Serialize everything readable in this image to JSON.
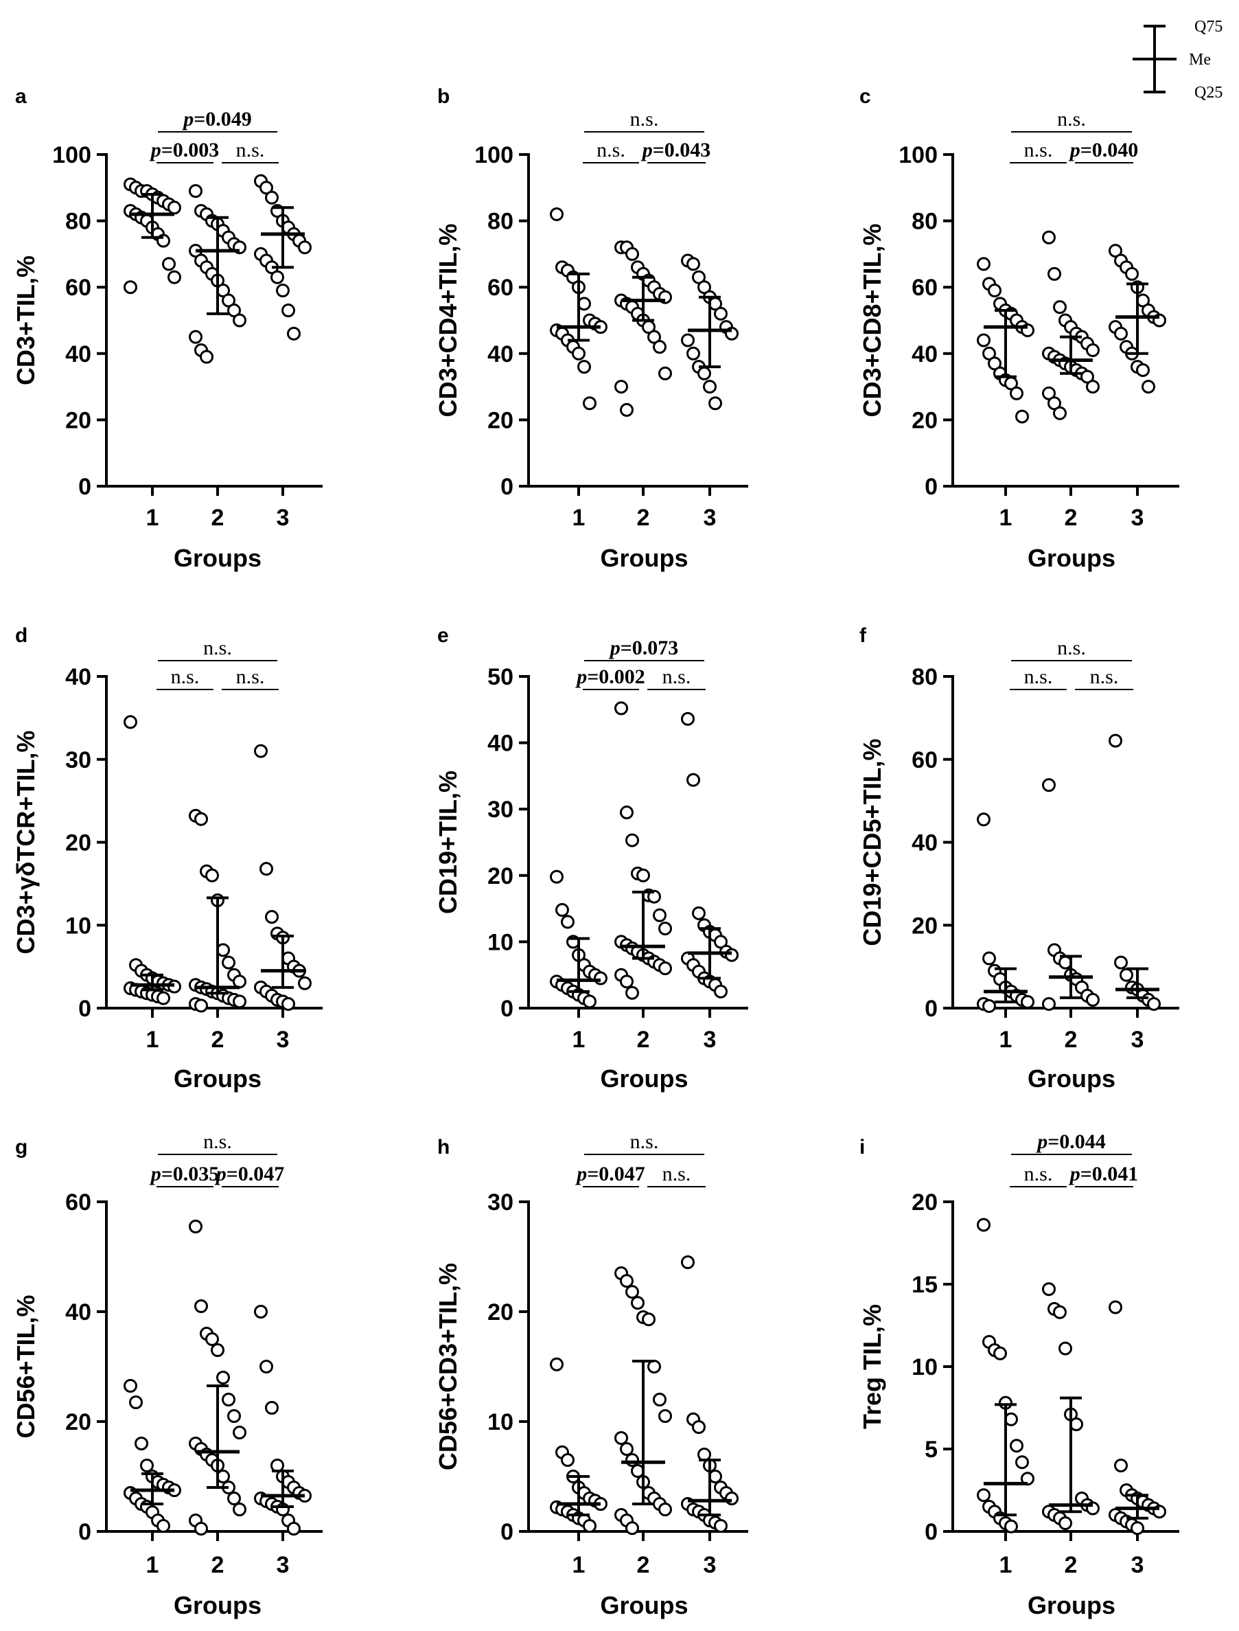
{
  "legend": {
    "q75": "Q75",
    "me": "Me",
    "q25": "Q25"
  },
  "chart_data": [
    {
      "panel": "a",
      "type": "scatter",
      "ylabel": "CD3+TIL,%",
      "xlabel": "Groups",
      "categories": [
        "1",
        "2",
        "3"
      ],
      "ylim": [
        0,
        100
      ],
      "yticks": [
        0,
        20,
        40,
        60,
        80,
        100
      ],
      "summary": [
        {
          "q25": 75,
          "median": 82,
          "q75": 88
        },
        {
          "q25": 52,
          "median": 71,
          "q75": 81
        },
        {
          "q25": 66,
          "median": 76,
          "q75": 84
        }
      ],
      "points": [
        [
          91,
          90,
          89,
          89,
          88,
          87,
          86,
          85,
          84,
          83,
          82,
          81,
          80,
          78,
          76,
          74,
          67,
          63,
          60
        ],
        [
          89,
          83,
          82,
          80,
          79,
          77,
          75,
          73,
          72,
          71,
          68,
          66,
          64,
          62,
          59,
          56,
          53,
          50,
          45,
          41,
          39
        ],
        [
          92,
          90,
          87,
          83,
          80,
          78,
          76,
          74,
          72,
          70,
          68,
          66,
          63,
          59,
          53,
          46
        ]
      ],
      "comparisons": [
        {
          "groups": [
            "1",
            "3"
          ],
          "label": "=0.049",
          "p_prefix": true,
          "level": 0
        },
        {
          "groups": [
            "1",
            "2"
          ],
          "label": "=0.003",
          "p_prefix": true,
          "level": 1
        },
        {
          "groups": [
            "2",
            "3"
          ],
          "label": "n.s.",
          "p_prefix": false,
          "level": 1
        }
      ]
    },
    {
      "panel": "b",
      "type": "scatter",
      "ylabel": "CD3+CD4+TIL,%",
      "xlabel": "Groups",
      "categories": [
        "1",
        "2",
        "3"
      ],
      "ylim": [
        0,
        100
      ],
      "yticks": [
        0,
        20,
        40,
        60,
        80,
        100
      ],
      "summary": [
        {
          "q25": 44,
          "median": 48,
          "q75": 64
        },
        {
          "q25": 50,
          "median": 56,
          "q75": 63
        },
        {
          "q25": 36,
          "median": 47,
          "q75": 57
        }
      ],
      "points": [
        [
          82,
          66,
          65,
          63,
          60,
          55,
          50,
          49,
          48,
          47,
          46,
          44,
          42,
          40,
          36,
          25
        ],
        [
          72,
          72,
          70,
          66,
          64,
          62,
          60,
          58,
          57,
          56,
          55,
          54,
          52,
          50,
          48,
          45,
          42,
          34,
          30,
          23
        ],
        [
          68,
          67,
          63,
          60,
          57,
          55,
          52,
          48,
          46,
          44,
          40,
          36,
          34,
          30,
          25
        ]
      ],
      "comparisons": [
        {
          "groups": [
            "1",
            "3"
          ],
          "label": "n.s.",
          "p_prefix": false,
          "level": 0
        },
        {
          "groups": [
            "1",
            "2"
          ],
          "label": "n.s.",
          "p_prefix": false,
          "level": 1
        },
        {
          "groups": [
            "2",
            "3"
          ],
          "label": "=0.043",
          "p_prefix": true,
          "level": 1
        }
      ]
    },
    {
      "panel": "c",
      "type": "scatter",
      "ylabel": "CD3+CD8+TIL,%",
      "xlabel": "Groups",
      "categories": [
        "1",
        "2",
        "3"
      ],
      "ylim": [
        0,
        100
      ],
      "yticks": [
        0,
        20,
        40,
        60,
        80,
        100
      ],
      "summary": [
        {
          "q25": 33,
          "median": 48,
          "q75": 53
        },
        {
          "q25": 34,
          "median": 38,
          "q75": 45
        },
        {
          "q25": 40,
          "median": 51,
          "q75": 61
        }
      ],
      "points": [
        [
          67,
          61,
          59,
          55,
          53,
          52,
          50,
          48,
          47,
          44,
          40,
          37,
          34,
          32,
          31,
          28,
          21
        ],
        [
          75,
          64,
          54,
          50,
          48,
          46,
          45,
          43,
          41,
          40,
          39,
          38,
          37,
          36,
          35,
          34,
          33,
          30,
          28,
          25,
          22
        ],
        [
          71,
          68,
          66,
          64,
          60,
          56,
          53,
          51,
          50,
          48,
          46,
          42,
          40,
          36,
          35,
          30
        ]
      ],
      "comparisons": [
        {
          "groups": [
            "1",
            "3"
          ],
          "label": "n.s.",
          "p_prefix": false,
          "level": 0
        },
        {
          "groups": [
            "1",
            "2"
          ],
          "label": "n.s.",
          "p_prefix": false,
          "level": 1
        },
        {
          "groups": [
            "2",
            "3"
          ],
          "label": "=0.040",
          "p_prefix": true,
          "level": 1
        }
      ]
    },
    {
      "panel": "d",
      "type": "scatter",
      "ylabel": "CD3+γδTCR+TIL,%",
      "xlabel": "Groups",
      "categories": [
        "1",
        "2",
        "3"
      ],
      "ylim": [
        0,
        40
      ],
      "yticks": [
        0,
        10,
        20,
        30,
        40
      ],
      "summary": [
        {
          "q25": 2.2,
          "median": 2.8,
          "q75": 4.0
        },
        {
          "q25": 1.8,
          "median": 2.5,
          "q75": 13.3
        },
        {
          "q25": 2.5,
          "median": 4.5,
          "q75": 8.7
        }
      ],
      "points": [
        [
          34.5,
          5.2,
          4.5,
          4.0,
          3.6,
          3.2,
          3.0,
          2.8,
          2.6,
          2.4,
          2.2,
          2.0,
          1.8,
          1.6,
          1.4,
          1.2
        ],
        [
          23.2,
          22.8,
          16.5,
          16.0,
          13.0,
          7.0,
          5.5,
          4.0,
          3.2,
          2.8,
          2.5,
          2.3,
          2.0,
          1.8,
          1.5,
          1.2,
          1.0,
          0.8,
          0.5,
          0.3
        ],
        [
          31.0,
          16.8,
          11.0,
          9.0,
          8.5,
          6.0,
          5.0,
          4.5,
          3.0,
          2.5,
          2.0,
          1.5,
          1.0,
          0.8,
          0.5
        ]
      ],
      "comparisons": [
        {
          "groups": [
            "1",
            "3"
          ],
          "label": "n.s.",
          "p_prefix": false,
          "level": 0
        },
        {
          "groups": [
            "1",
            "2"
          ],
          "label": "n.s.",
          "p_prefix": false,
          "level": 1
        },
        {
          "groups": [
            "2",
            "3"
          ],
          "label": "n.s.",
          "p_prefix": false,
          "level": 1
        }
      ]
    },
    {
      "panel": "e",
      "type": "scatter",
      "ylabel": "CD19+TIL,%",
      "xlabel": "Groups",
      "categories": [
        "1",
        "2",
        "3"
      ],
      "ylim": [
        0,
        50
      ],
      "yticks": [
        0,
        10,
        20,
        30,
        40,
        50
      ],
      "summary": [
        {
          "q25": 2.5,
          "median": 4.2,
          "q75": 10.5
        },
        {
          "q25": 7.5,
          "median": 9.3,
          "q75": 17.5
        },
        {
          "q25": 4.5,
          "median": 8.3,
          "q75": 12.0
        }
      ],
      "points": [
        [
          19.8,
          14.8,
          13.0,
          10.0,
          8.0,
          6.5,
          5.5,
          5.0,
          4.5,
          4.0,
          3.5,
          3.0,
          2.5,
          2.0,
          1.5,
          1.0
        ],
        [
          45.2,
          29.5,
          25.3,
          20.3,
          20.0,
          17.0,
          16.8,
          14.0,
          12.0,
          10.0,
          9.5,
          9.0,
          8.5,
          8.0,
          7.5,
          7.0,
          6.5,
          6.0,
          5.0,
          4.0,
          2.3
        ],
        [
          43.6,
          34.4,
          14.3,
          12.5,
          11.5,
          11.0,
          10.0,
          8.5,
          8.0,
          7.5,
          6.5,
          5.5,
          4.5,
          4.0,
          3.5,
          2.5
        ]
      ],
      "comparisons": [
        {
          "groups": [
            "1",
            "3"
          ],
          "label": "=0.073",
          "p_prefix": true,
          "level": 0
        },
        {
          "groups": [
            "1",
            "2"
          ],
          "label": "=0.002",
          "p_prefix": true,
          "level": 1
        },
        {
          "groups": [
            "2",
            "3"
          ],
          "label": "n.s.",
          "p_prefix": false,
          "level": 1
        }
      ]
    },
    {
      "panel": "f",
      "type": "scatter",
      "ylabel": "CD19+CD5+TIL,%",
      "xlabel": "Groups",
      "categories": [
        "1",
        "2",
        "3"
      ],
      "ylim": [
        0,
        80
      ],
      "yticks": [
        0,
        20,
        40,
        60,
        80
      ],
      "summary": [
        {
          "q25": 1.5,
          "median": 4.0,
          "q75": 9.5
        },
        {
          "q25": 2.5,
          "median": 7.5,
          "q75": 12.5
        },
        {
          "q25": 2.5,
          "median": 4.5,
          "q75": 9.5
        }
      ],
      "points": [
        [
          45.5,
          12.0,
          9.0,
          7.0,
          5.0,
          4.0,
          3.0,
          2.0,
          1.5,
          1.0,
          0.5
        ],
        [
          53.8,
          14.0,
          12.0,
          11.0,
          8.0,
          7.0,
          5.0,
          3.0,
          2.0,
          1.0
        ],
        [
          64.5,
          11.0,
          8.0,
          5.0,
          4.5,
          3.0,
          2.0,
          1.0
        ]
      ],
      "comparisons": [
        {
          "groups": [
            "1",
            "3"
          ],
          "label": "n.s.",
          "p_prefix": false,
          "level": 0
        },
        {
          "groups": [
            "1",
            "2"
          ],
          "label": "n.s.",
          "p_prefix": false,
          "level": 1
        },
        {
          "groups": [
            "2",
            "3"
          ],
          "label": "n.s.",
          "p_prefix": false,
          "level": 1
        }
      ]
    },
    {
      "panel": "g",
      "type": "scatter",
      "ylabel": "CD56+TIL,%",
      "xlabel": "Groups",
      "categories": [
        "1",
        "2",
        "3"
      ],
      "ylim": [
        0,
        60
      ],
      "yticks": [
        0,
        20,
        40,
        60
      ],
      "summary": [
        {
          "q25": 5.0,
          "median": 7.5,
          "q75": 10.5
        },
        {
          "q25": 8.0,
          "median": 14.5,
          "q75": 26.5
        },
        {
          "q25": 4.5,
          "median": 6.5,
          "q75": 11.0
        }
      ],
      "points": [
        [
          26.5,
          23.5,
          16.0,
          12.0,
          10.0,
          9.0,
          8.5,
          8.0,
          7.5,
          7.0,
          6.0,
          5.0,
          4.5,
          3.5,
          2.0,
          1.0
        ],
        [
          55.5,
          41.0,
          36.0,
          35.0,
          33.0,
          28.0,
          24.0,
          21.0,
          18.0,
          16.0,
          15.0,
          14.0,
          13.0,
          12.0,
          10.0,
          8.0,
          6.0,
          4.0,
          2.0,
          0.5
        ],
        [
          40.0,
          30.0,
          22.5,
          12.0,
          10.0,
          9.0,
          8.0,
          7.0,
          6.5,
          6.0,
          5.5,
          5.0,
          4.5,
          4.0,
          2.0,
          0.5
        ]
      ],
      "comparisons": [
        {
          "groups": [
            "1",
            "3"
          ],
          "label": "n.s.",
          "p_prefix": false,
          "level": 0
        },
        {
          "groups": [
            "1",
            "2"
          ],
          "label": "=0.035",
          "p_prefix": true,
          "level": 1
        },
        {
          "groups": [
            "2",
            "3"
          ],
          "label": "=0.047",
          "p_prefix": true,
          "level": 1
        }
      ]
    },
    {
      "panel": "h",
      "type": "scatter",
      "ylabel": "CD56+CD3+TIL,%",
      "xlabel": "Groups",
      "categories": [
        "1",
        "2",
        "3"
      ],
      "ylim": [
        0,
        30
      ],
      "yticks": [
        0,
        10,
        20,
        30
      ],
      "summary": [
        {
          "q25": 1.5,
          "median": 2.5,
          "q75": 5.0
        },
        {
          "q25": 2.5,
          "median": 6.3,
          "q75": 15.5
        },
        {
          "q25": 1.5,
          "median": 2.8,
          "q75": 6.5
        }
      ],
      "points": [
        [
          15.2,
          7.2,
          6.5,
          5.0,
          4.0,
          3.5,
          3.0,
          2.8,
          2.5,
          2.2,
          2.0,
          1.8,
          1.5,
          1.2,
          1.0,
          0.5
        ],
        [
          23.5,
          22.8,
          21.8,
          20.8,
          19.5,
          19.3,
          15.0,
          12.0,
          10.5,
          8.5,
          7.5,
          6.5,
          5.5,
          4.5,
          3.5,
          3.0,
          2.5,
          2.0,
          1.5,
          1.0,
          0.3
        ],
        [
          24.5,
          10.2,
          9.5,
          7.0,
          6.0,
          5.0,
          4.0,
          3.5,
          3.0,
          2.5,
          2.0,
          1.8,
          1.5,
          1.0,
          0.8,
          0.5
        ]
      ],
      "comparisons": [
        {
          "groups": [
            "1",
            "3"
          ],
          "label": "n.s.",
          "p_prefix": false,
          "level": 0
        },
        {
          "groups": [
            "1",
            "2"
          ],
          "label": "=0.047",
          "p_prefix": true,
          "level": 1
        },
        {
          "groups": [
            "2",
            "3"
          ],
          "label": "n.s.",
          "p_prefix": false,
          "level": 1
        }
      ]
    },
    {
      "panel": "i",
      "type": "scatter",
      "ylabel": "Treg TIL,%",
      "xlabel": "Groups",
      "categories": [
        "1",
        "2",
        "3"
      ],
      "ylim": [
        0,
        20
      ],
      "yticks": [
        0,
        5,
        10,
        15,
        20
      ],
      "summary": [
        {
          "q25": 1.0,
          "median": 2.9,
          "q75": 7.7
        },
        {
          "q25": 1.2,
          "median": 1.6,
          "q75": 8.1
        },
        {
          "q25": 0.8,
          "median": 1.4,
          "q75": 2.2
        }
      ],
      "points": [
        [
          18.6,
          11.5,
          11.0,
          10.8,
          7.8,
          6.8,
          5.2,
          4.2,
          3.2,
          2.2,
          1.5,
          1.2,
          0.8,
          0.5,
          0.3
        ],
        [
          14.7,
          13.5,
          13.3,
          11.1,
          7.1,
          6.5,
          2.0,
          1.6,
          1.4,
          1.2,
          1.0,
          0.8,
          0.5
        ],
        [
          13.6,
          4.0,
          2.5,
          2.2,
          2.0,
          1.8,
          1.6,
          1.4,
          1.2,
          1.0,
          0.8,
          0.6,
          0.4,
          0.2
        ]
      ],
      "comparisons": [
        {
          "groups": [
            "1",
            "3"
          ],
          "label": "=0.044",
          "p_prefix": true,
          "level": 0
        },
        {
          "groups": [
            "1",
            "2"
          ],
          "label": "n.s.",
          "p_prefix": false,
          "level": 1
        },
        {
          "groups": [
            "2",
            "3"
          ],
          "label": "=0.041",
          "p_prefix": true,
          "level": 1
        }
      ]
    }
  ]
}
